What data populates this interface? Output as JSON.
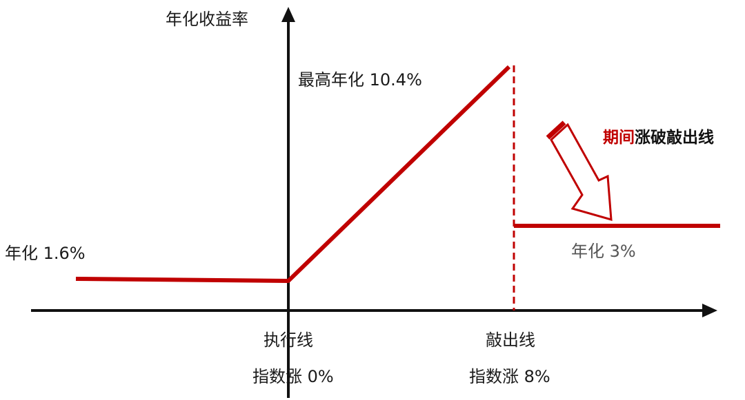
{
  "axis": {
    "y_label": "年化收益率"
  },
  "labels": {
    "max_annual": "最高年化 10.4%",
    "left_annual": "年化 1.6%",
    "knockout_annual": "年化 3%",
    "strike_line": "执行线",
    "strike_index": "指数涨 0%",
    "knockout_line": "敲出线",
    "knockout_index": "指数涨 8%",
    "callout_part1": "期间",
    "callout_part2": "涨破敲出线"
  },
  "colors": {
    "payoff": "#c00000",
    "axis": "#111111",
    "callout_accent": "#c00000",
    "callout_text": "#111111",
    "muted_label": "#555555"
  }
}
